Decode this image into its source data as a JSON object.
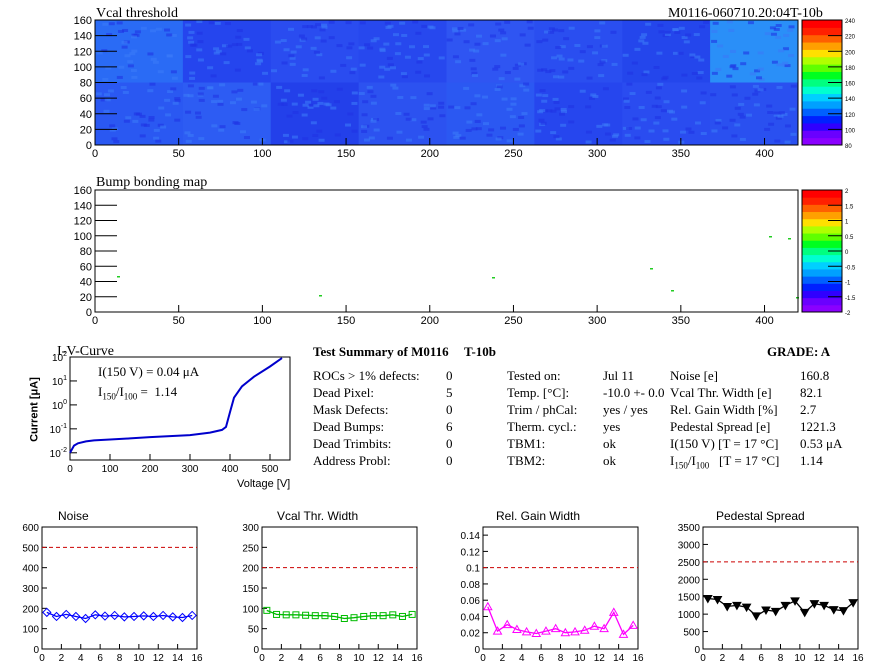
{
  "map1": {
    "title": "Vcal threshold",
    "module_id": "M0116-060710.20:04T-10b",
    "x_ticks": [
      "0",
      "50",
      "100",
      "150",
      "200",
      "250",
      "300",
      "350",
      "400"
    ],
    "y_ticks": [
      "0",
      "20",
      "40",
      "60",
      "80",
      "100",
      "120",
      "140",
      "160"
    ],
    "scale_ticks": [
      "80",
      "100",
      "120",
      "140",
      "160",
      "180",
      "200",
      "220",
      "240"
    ]
  },
  "map2": {
    "title": "Bump bonding map",
    "x_ticks": [
      "0",
      "50",
      "100",
      "150",
      "200",
      "250",
      "300",
      "350",
      "400"
    ],
    "y_ticks": [
      "0",
      "20",
      "40",
      "60",
      "80",
      "100",
      "120",
      "140",
      "160"
    ],
    "scale_ticks": [
      "-2",
      "-1.5",
      "-1",
      "-0.5",
      "0",
      "0.5",
      "1",
      "1.5",
      "2"
    ]
  },
  "iv": {
    "title": "I-V-Curve",
    "annotation_i150": "I(150 V) = 0.04 μA",
    "annotation_ratio_value": "1.14",
    "xlabel": "Voltage [V]",
    "ylabel": "Current [μA]",
    "x_ticks": [
      "0",
      "100",
      "200",
      "300",
      "400",
      "500"
    ]
  },
  "summary": {
    "title": "Test Summary of M0116",
    "subtitle": "T-10b",
    "grade": "GRADE:  A",
    "left": [
      {
        "label": "ROCs > 1% defects:",
        "value": "0"
      },
      {
        "label": "Dead Pixel:",
        "value": "5"
      },
      {
        "label": "Mask Defects:",
        "value": "0"
      },
      {
        "label": "Dead Bumps:",
        "value": "6"
      },
      {
        "label": "Dead Trimbits:",
        "value": "0"
      },
      {
        "label": "Address Probl:",
        "value": "0"
      }
    ],
    "middle": [
      {
        "label": "Tested on:",
        "value": "Jul 11"
      },
      {
        "label": "Temp. [°C]:",
        "value": "-10.0 +- 0.0"
      },
      {
        "label": "Trim / phCal:",
        "value": "yes / yes"
      },
      {
        "label": "Therm. cycl.:",
        "value": "yes"
      },
      {
        "label": "TBM1:",
        "value": "ok"
      },
      {
        "label": "TBM2:",
        "value": "ok"
      }
    ],
    "right": [
      {
        "label": "Noise [e]",
        "value": "160.8"
      },
      {
        "label": "Vcal Thr. Width [e]",
        "value": "82.1"
      },
      {
        "label": "Rel. Gain Width [%]",
        "value": "2.7"
      },
      {
        "label": "Pedestal Spread [e]",
        "value": "1221.3"
      },
      {
        "label": "I(150 V) [T = 17 °C]",
        "value": "0.53 μA"
      },
      {
        "label": "[T = 17 °C]",
        "value": "1.14"
      }
    ]
  },
  "colors": {
    "noise": "#0000ff",
    "vcal": "#00bb00",
    "gain": "#ff00ff",
    "pedestal": "#000000",
    "limit": "#cc0000",
    "iv": "#0000cc"
  },
  "chart_data": [
    {
      "type": "line",
      "title": "Noise",
      "x": [
        0.5,
        1.5,
        2.5,
        3.5,
        4.5,
        5.5,
        6.5,
        7.5,
        8.5,
        9.5,
        10.5,
        11.5,
        12.5,
        13.5,
        14.5,
        15.5
      ],
      "values": [
        180,
        160,
        170,
        160,
        150,
        168,
        162,
        165,
        158,
        160,
        163,
        160,
        165,
        158,
        155,
        165
      ],
      "limit": 500,
      "xlim": [
        0,
        16
      ],
      "ylim": [
        0,
        600
      ],
      "x_ticks": [
        "0",
        "2",
        "4",
        "6",
        "8",
        "10",
        "12",
        "14",
        "16"
      ],
      "y_ticks": [
        "0",
        "100",
        "200",
        "300",
        "400",
        "500",
        "600"
      ]
    },
    {
      "type": "line",
      "title": "Vcal Thr. Width",
      "x": [
        0.5,
        1.5,
        2.5,
        3.5,
        4.5,
        5.5,
        6.5,
        7.5,
        8.5,
        9.5,
        10.5,
        11.5,
        12.5,
        13.5,
        14.5,
        15.5
      ],
      "values": [
        95,
        85,
        84,
        84,
        83,
        82,
        82,
        80,
        75,
        77,
        80,
        82,
        82,
        84,
        80,
        85
      ],
      "limit": 200,
      "xlim": [
        0,
        16
      ],
      "ylim": [
        0,
        300
      ],
      "x_ticks": [
        "0",
        "2",
        "4",
        "6",
        "8",
        "10",
        "12",
        "14",
        "16"
      ],
      "y_ticks": [
        "0",
        "50",
        "100",
        "150",
        "200",
        "250",
        "300"
      ]
    },
    {
      "type": "line",
      "title": "Rel. Gain Width",
      "x": [
        0.5,
        1.5,
        2.5,
        3.5,
        4.5,
        5.5,
        6.5,
        7.5,
        8.5,
        9.5,
        10.5,
        11.5,
        12.5,
        13.5,
        14.5,
        15.5
      ],
      "values": [
        0.052,
        0.022,
        0.03,
        0.024,
        0.021,
        0.019,
        0.022,
        0.025,
        0.02,
        0.021,
        0.023,
        0.028,
        0.025,
        0.045,
        0.018,
        0.029
      ],
      "limit": 0.1,
      "xlim": [
        0,
        16
      ],
      "ylim": [
        0,
        0.15
      ],
      "x_ticks": [
        "0",
        "2",
        "4",
        "6",
        "8",
        "10",
        "12",
        "14",
        "16"
      ],
      "y_ticks": [
        "0",
        "0.02",
        "0.04",
        "0.06",
        "0.08",
        "0.1",
        "0.12",
        "0.14"
      ]
    },
    {
      "type": "line",
      "title": "Pedestal Spread",
      "x": [
        0.5,
        1.5,
        2.5,
        3.5,
        4.5,
        5.5,
        6.5,
        7.5,
        8.5,
        9.5,
        10.5,
        11.5,
        12.5,
        13.5,
        14.5,
        15.5
      ],
      "values": [
        1450,
        1420,
        1220,
        1250,
        1200,
        950,
        1120,
        1080,
        1250,
        1380,
        1050,
        1300,
        1250,
        1130,
        1100,
        1330
      ],
      "limit": 2500,
      "xlim": [
        0,
        16
      ],
      "ylim": [
        0,
        3500
      ],
      "x_ticks": [
        "0",
        "2",
        "4",
        "6",
        "8",
        "10",
        "12",
        "14",
        "16"
      ],
      "y_ticks": [
        "0",
        "500",
        "1000",
        "1500",
        "2000",
        "2500",
        "3000",
        "3500"
      ]
    },
    {
      "type": "line",
      "title": "I-V-Curve",
      "x": [
        0,
        10,
        20,
        40,
        60,
        100,
        150,
        200,
        250,
        300,
        350,
        380,
        390,
        400,
        410,
        430,
        460,
        500,
        530
      ],
      "values": [
        0.01,
        0.02,
        0.025,
        0.03,
        0.033,
        0.036,
        0.04,
        0.045,
        0.05,
        0.055,
        0.07,
        0.09,
        0.12,
        0.5,
        2,
        6,
        15,
        40,
        90
      ],
      "xlim": [
        0,
        550
      ],
      "ylim": [
        0.005,
        100
      ],
      "log_y": true
    }
  ]
}
